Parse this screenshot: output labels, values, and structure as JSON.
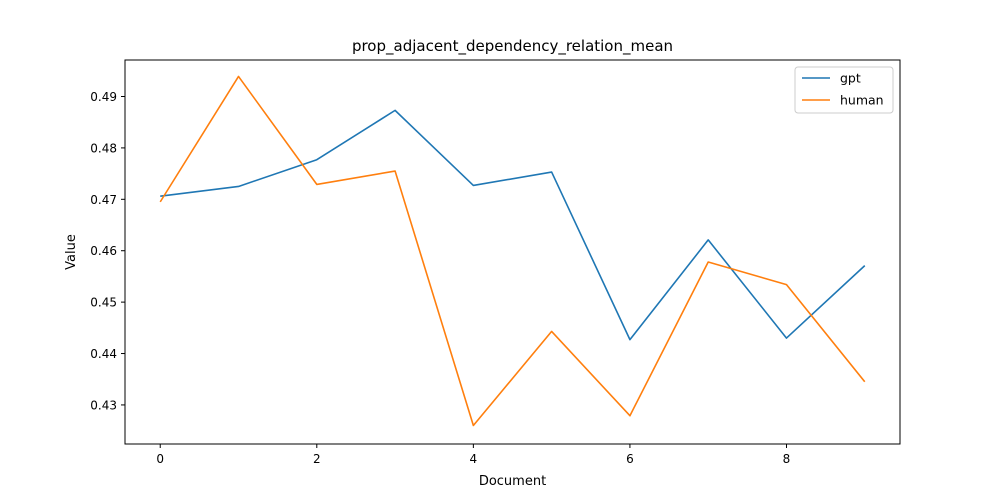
{
  "chart_data": {
    "type": "line",
    "title": "prop_adjacent_dependency_relation_mean",
    "xlabel": "Document",
    "ylabel": "Value",
    "x": [
      0,
      1,
      2,
      3,
      4,
      5,
      6,
      7,
      8,
      9
    ],
    "xticks": [
      0,
      2,
      4,
      6,
      8
    ],
    "xtick_labels": [
      "0",
      "2",
      "4",
      "6",
      "8"
    ],
    "yticks": [
      0.43,
      0.44,
      0.45,
      0.46,
      0.47,
      0.48,
      0.49
    ],
    "ytick_labels": [
      "0.43",
      "0.44",
      "0.45",
      "0.46",
      "0.47",
      "0.48",
      "0.49"
    ],
    "xlim": [
      -0.45,
      9.45
    ],
    "ylim": [
      0.4224,
      0.4971
    ],
    "grid": false,
    "legend_position": "top-right",
    "series": [
      {
        "name": "gpt",
        "color": "#1f77b4",
        "values": [
          0.4706,
          0.4725,
          0.4777,
          0.4873,
          0.4727,
          0.4753,
          0.4427,
          0.4621,
          0.443,
          0.4571
        ]
      },
      {
        "name": "human",
        "color": "#ff7f0e",
        "values": [
          0.4695,
          0.4939,
          0.4729,
          0.4755,
          0.426,
          0.4443,
          0.4279,
          0.4578,
          0.4534,
          0.4345
        ]
      }
    ]
  }
}
